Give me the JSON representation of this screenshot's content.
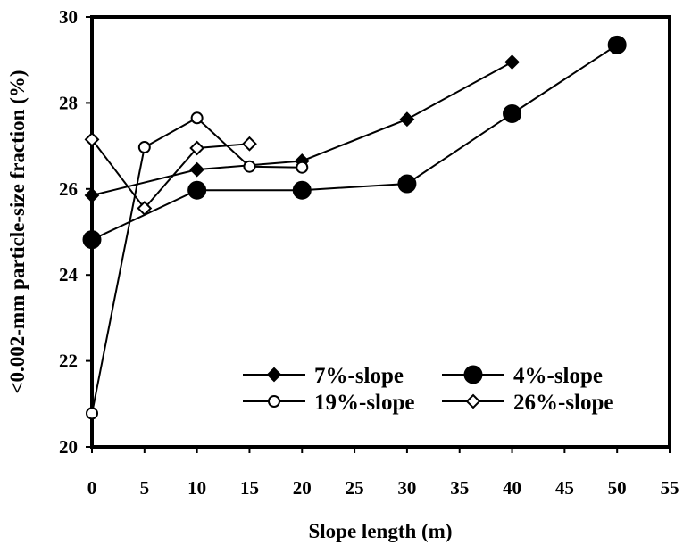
{
  "chart_data": {
    "type": "line",
    "title": "",
    "xlabel": "Slope length (m)",
    "ylabel": "<0.002-mm particle-size fraction (%)",
    "xlim": [
      0,
      55
    ],
    "ylim": [
      20,
      30
    ],
    "x_ticks": [
      "0",
      "5",
      "10",
      "15",
      "20",
      "25",
      "30",
      "35",
      "40",
      "45",
      "50",
      "55"
    ],
    "y_ticks": [
      "20",
      "22",
      "24",
      "26",
      "28",
      "30"
    ],
    "grid": false,
    "legend_position": "bottom-right",
    "series": [
      {
        "name": "7%-slope",
        "marker": "filled-diamond",
        "x": [
          0,
          10,
          20,
          30,
          40
        ],
        "y": [
          25.85,
          26.45,
          26.65,
          27.62,
          28.95
        ]
      },
      {
        "name": "4%-slope",
        "marker": "filled-circle",
        "x": [
          0,
          10,
          20,
          30,
          40,
          50
        ],
        "y": [
          24.82,
          25.97,
          25.97,
          26.12,
          27.75,
          29.35
        ]
      },
      {
        "name": "19%-slope",
        "marker": "open-circle",
        "x": [
          0,
          5,
          10,
          15,
          20
        ],
        "y": [
          20.78,
          26.97,
          27.65,
          26.52,
          26.5
        ]
      },
      {
        "name": "26%-slope",
        "marker": "open-diamond",
        "x": [
          0,
          5,
          10,
          15
        ],
        "y": [
          27.15,
          25.55,
          26.95,
          27.05
        ]
      }
    ]
  }
}
